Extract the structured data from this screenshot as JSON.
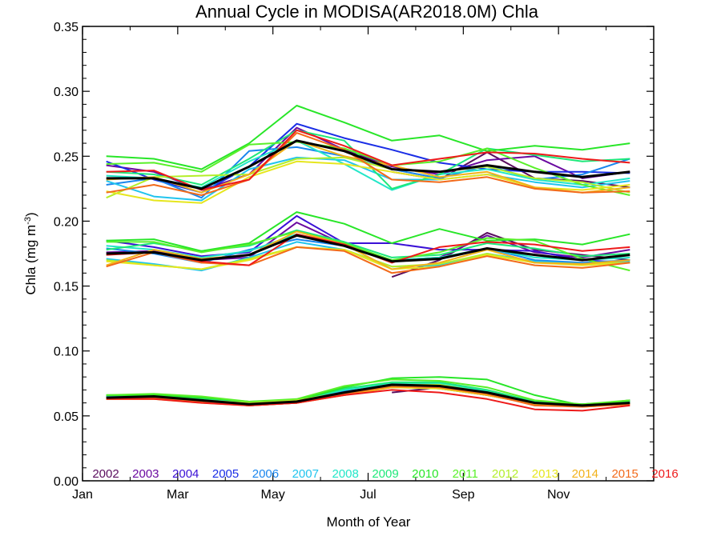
{
  "chart_data": {
    "type": "line",
    "title": "Annual Cycle in MODISA(AR2018.0M) Chla",
    "xlabel": "Month of Year",
    "ylabel": "Chla (mg m",
    "ylabel_sup": "-3",
    "ylabel_end": ")",
    "xlim": [
      1,
      13
    ],
    "ylim": [
      0.0,
      0.35
    ],
    "x_ticks": [
      {
        "value": 1,
        "label": "Jan"
      },
      {
        "value": 3,
        "label": "Mar"
      },
      {
        "value": 5,
        "label": "May"
      },
      {
        "value": 7,
        "label": "Jul"
      },
      {
        "value": 9,
        "label": "Sep"
      },
      {
        "value": 11,
        "label": "Nov"
      }
    ],
    "y_ticks": [
      "0.00",
      "0.05",
      "0.10",
      "0.15",
      "0.20",
      "0.25",
      "0.30",
      "0.35"
    ],
    "grid": false,
    "legend_placement": "bottom",
    "x": [
      1.5,
      2.5,
      3.5,
      4.5,
      5.5,
      6.5,
      7.5,
      8.5,
      9.5,
      10.5,
      11.5,
      12.5
    ],
    "series": [
      {
        "name": "2002",
        "color": "#5a0d5e",
        "groups": [
          [
            null,
            null,
            null,
            null,
            null,
            null,
            0.068,
            0.072,
            0.066,
            0.06,
            0.058,
            0.06
          ],
          [
            null,
            null,
            null,
            null,
            null,
            null,
            0.157,
            0.17,
            0.191,
            0.178,
            0.174,
            0.17
          ],
          [
            null,
            null,
            null,
            null,
            null,
            null,
            0.238,
            0.232,
            0.253,
            0.233,
            0.231,
            0.226
          ]
        ]
      },
      {
        "name": "2003",
        "color": "#6a0aa0",
        "groups": [
          [
            0.064,
            0.064,
            0.061,
            0.058,
            0.06,
            0.067,
            0.073,
            0.071,
            0.066,
            0.059,
            0.058,
            0.061
          ],
          [
            0.176,
            0.177,
            0.17,
            0.172,
            0.199,
            0.182,
            0.17,
            0.172,
            0.189,
            0.176,
            0.172,
            0.178
          ],
          [
            0.243,
            0.238,
            0.224,
            0.236,
            0.272,
            0.255,
            0.242,
            0.236,
            0.247,
            0.25,
            0.233,
            0.238
          ]
        ]
      },
      {
        "name": "2004",
        "color": "#3a10d6",
        "groups": [
          [
            0.065,
            0.065,
            0.062,
            0.059,
            0.061,
            0.068,
            0.074,
            0.073,
            0.067,
            0.059,
            0.058,
            0.062
          ],
          [
            0.185,
            0.18,
            0.173,
            0.176,
            0.204,
            0.183,
            0.183,
            0.178,
            0.178,
            0.177,
            0.17,
            0.168
          ]
        ]
      },
      {
        "name": "2005",
        "color": "#1a2ee6",
        "groups": [
          [
            0.064,
            0.066,
            0.062,
            0.059,
            0.061,
            0.068,
            0.073,
            0.072,
            0.066,
            0.06,
            0.059,
            0.061
          ],
          [
            0.246,
            0.232,
            0.222,
            0.242,
            0.275,
            0.264,
            0.255,
            0.245,
            0.24,
            0.238,
            0.238,
            0.237
          ]
        ]
      },
      {
        "name": "2006",
        "color": "#1a86ee",
        "groups": [
          [
            0.065,
            0.064,
            0.061,
            0.058,
            0.061,
            0.069,
            0.073,
            0.072,
            0.068,
            0.06,
            0.059,
            0.061
          ],
          [
            0.179,
            0.175,
            0.168,
            0.178,
            0.186,
            0.181,
            0.169,
            0.171,
            0.179,
            0.17,
            0.168,
            0.17
          ],
          [
            0.228,
            0.233,
            0.218,
            0.254,
            0.257,
            0.25,
            0.24,
            0.233,
            0.243,
            0.232,
            0.236,
            0.248
          ]
        ]
      },
      {
        "name": "2007",
        "color": "#21c4ee",
        "groups": [
          [
            0.064,
            0.064,
            0.062,
            0.058,
            0.061,
            0.068,
            0.072,
            0.072,
            0.066,
            0.059,
            0.058,
            0.06
          ],
          [
            0.171,
            0.167,
            0.162,
            0.172,
            0.184,
            0.178,
            0.165,
            0.166,
            0.175,
            0.169,
            0.167,
            0.169
          ],
          [
            0.231,
            0.219,
            0.216,
            0.24,
            0.249,
            0.247,
            0.232,
            0.232,
            0.236,
            0.23,
            0.226,
            0.231
          ]
        ]
      },
      {
        "name": "2008",
        "color": "#22e6c8",
        "groups": [
          [
            0.065,
            0.065,
            0.063,
            0.06,
            0.062,
            0.07,
            0.075,
            0.075,
            0.069,
            0.06,
            0.058,
            0.061
          ],
          [
            0.181,
            0.178,
            0.172,
            0.177,
            0.19,
            0.182,
            0.17,
            0.172,
            0.179,
            0.172,
            0.17,
            0.172
          ],
          [
            0.235,
            0.233,
            0.226,
            0.246,
            0.262,
            0.244,
            0.224,
            0.236,
            0.24,
            0.232,
            0.228,
            0.233
          ]
        ]
      },
      {
        "name": "2009",
        "color": "#1ee87a",
        "groups": [
          [
            0.066,
            0.066,
            0.063,
            0.059,
            0.062,
            0.071,
            0.076,
            0.076,
            0.07,
            0.061,
            0.059,
            0.061
          ],
          [
            0.178,
            0.183,
            0.177,
            0.181,
            0.193,
            0.184,
            0.172,
            0.174,
            0.183,
            0.179,
            0.173,
            0.175
          ],
          [
            0.238,
            0.236,
            0.228,
            0.248,
            0.27,
            0.262,
            0.225,
            0.236,
            0.256,
            0.251,
            0.246,
            0.248
          ]
        ]
      },
      {
        "name": "2010",
        "color": "#28e628",
        "groups": [
          [
            0.066,
            0.066,
            0.064,
            0.061,
            0.062,
            0.072,
            0.079,
            0.08,
            0.078,
            0.066,
            0.058,
            0.062
          ],
          [
            0.185,
            0.186,
            0.177,
            0.183,
            0.207,
            0.198,
            0.183,
            0.194,
            0.185,
            0.186,
            0.182,
            0.19
          ],
          [
            0.25,
            0.248,
            0.24,
            0.26,
            0.289,
            0.276,
            0.262,
            0.266,
            0.254,
            0.258,
            0.255,
            0.26
          ]
        ]
      },
      {
        "name": "2011",
        "color": "#5af02a",
        "groups": [
          [
            0.066,
            0.067,
            0.065,
            0.061,
            0.063,
            0.073,
            0.078,
            0.077,
            0.072,
            0.062,
            0.059,
            0.062
          ],
          [
            0.184,
            0.184,
            0.176,
            0.182,
            0.192,
            0.183,
            0.17,
            0.176,
            0.187,
            0.185,
            0.171,
            0.162
          ],
          [
            0.244,
            0.245,
            0.238,
            0.259,
            0.261,
            0.256,
            0.243,
            0.246,
            0.256,
            0.241,
            0.228,
            0.22
          ]
        ]
      },
      {
        "name": "2012",
        "color": "#b4ee2a",
        "groups": [
          [
            0.064,
            0.065,
            0.062,
            0.06,
            0.062,
            0.068,
            0.074,
            0.074,
            0.068,
            0.06,
            0.058,
            0.06
          ],
          [
            0.17,
            0.166,
            0.163,
            0.171,
            0.18,
            0.178,
            0.165,
            0.167,
            0.175,
            0.168,
            0.167,
            0.168
          ],
          [
            0.218,
            0.234,
            0.235,
            0.236,
            0.248,
            0.249,
            0.24,
            0.238,
            0.242,
            0.233,
            0.23,
            0.222
          ]
        ]
      },
      {
        "name": "2013",
        "color": "#e6e61e",
        "groups": [
          [
            0.063,
            0.063,
            0.06,
            0.058,
            0.06,
            0.066,
            0.072,
            0.071,
            0.066,
            0.059,
            0.057,
            0.059
          ],
          [
            0.169,
            0.166,
            0.163,
            0.17,
            0.18,
            0.178,
            0.163,
            0.165,
            0.174,
            0.168,
            0.166,
            0.168
          ],
          [
            0.223,
            0.216,
            0.214,
            0.234,
            0.246,
            0.244,
            0.238,
            0.232,
            0.236,
            0.226,
            0.224,
            0.228
          ]
        ]
      },
      {
        "name": "2014",
        "color": "#f2b21a",
        "groups": [
          [
            0.063,
            0.063,
            0.061,
            0.058,
            0.06,
            0.066,
            0.072,
            0.072,
            0.066,
            0.059,
            0.057,
            0.059
          ],
          [
            0.166,
            0.178,
            0.171,
            0.174,
            0.192,
            0.182,
            0.163,
            0.168,
            0.178,
            0.168,
            0.167,
            0.17
          ],
          [
            0.232,
            0.234,
            0.222,
            0.236,
            0.262,
            0.25,
            0.243,
            0.234,
            0.238,
            0.226,
            0.222,
            0.226
          ]
        ]
      },
      {
        "name": "2015",
        "color": "#f26a1a",
        "groups": [
          [
            0.064,
            0.064,
            0.061,
            0.058,
            0.06,
            0.067,
            0.073,
            0.072,
            0.067,
            0.058,
            0.057,
            0.059
          ],
          [
            0.165,
            0.176,
            0.168,
            0.166,
            0.18,
            0.177,
            0.16,
            0.165,
            0.173,
            0.166,
            0.164,
            0.168
          ],
          [
            0.222,
            0.228,
            0.22,
            0.232,
            0.268,
            0.255,
            0.232,
            0.23,
            0.234,
            0.225,
            0.222,
            0.223
          ]
        ]
      },
      {
        "name": "2016",
        "color": "#ee1a1a",
        "groups": [
          [
            0.063,
            0.063,
            0.06,
            0.058,
            0.06,
            0.066,
            0.07,
            0.068,
            0.063,
            0.055,
            0.054,
            0.058
          ],
          [
            0.174,
            0.176,
            0.169,
            0.166,
            0.19,
            0.182,
            0.168,
            0.18,
            0.184,
            0.182,
            0.177,
            0.18
          ],
          [
            0.238,
            0.239,
            0.224,
            0.232,
            0.27,
            0.258,
            0.243,
            0.248,
            0.253,
            0.252,
            0.248,
            0.245
          ]
        ]
      }
    ],
    "mean": {
      "color": "#000000",
      "groups": [
        [
          0.064,
          0.065,
          0.062,
          0.059,
          0.061,
          0.068,
          0.074,
          0.073,
          0.068,
          0.06,
          0.058,
          0.06
        ],
        [
          0.175,
          0.176,
          0.17,
          0.174,
          0.189,
          0.181,
          0.169,
          0.171,
          0.179,
          0.174,
          0.17,
          0.174
        ],
        [
          0.233,
          0.233,
          0.225,
          0.242,
          0.262,
          0.254,
          0.24,
          0.238,
          0.243,
          0.238,
          0.234,
          0.238
        ]
      ]
    }
  }
}
